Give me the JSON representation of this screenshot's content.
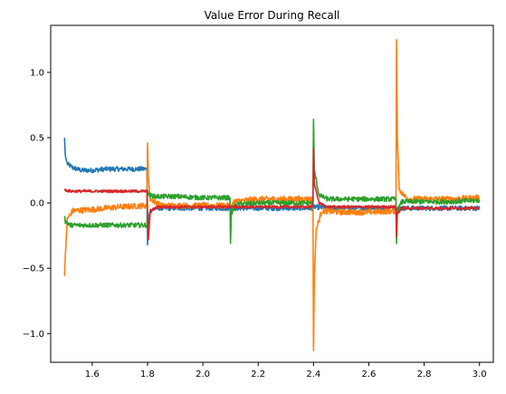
{
  "chart_data": {
    "type": "line",
    "title": "Value Error During Recall",
    "xlabel": "",
    "ylabel": "",
    "xlim": [
      1.45,
      3.05
    ],
    "ylim": [
      -1.22,
      1.36
    ],
    "xticks": [
      1.6,
      1.8,
      2.0,
      2.2,
      2.4,
      2.6,
      2.8,
      3.0
    ],
    "xtick_labels": [
      "1.6",
      "1.8",
      "2.0",
      "2.2",
      "2.4",
      "2.6",
      "2.8",
      "3.0"
    ],
    "yticks": [
      1.0,
      0.5,
      0.0,
      -0.5,
      -1.0
    ],
    "ytick_labels": [
      "1.0",
      "0.5",
      "0.0",
      "−0.5",
      "−1.0"
    ],
    "grid": false,
    "legend": "none",
    "series": [
      {
        "color": "#1f77b4",
        "noise": 0.018,
        "points": [
          [
            1.5,
            0.5
          ],
          [
            1.503,
            0.36
          ],
          [
            1.51,
            0.3
          ],
          [
            1.53,
            0.27
          ],
          [
            1.56,
            0.25
          ],
          [
            1.6,
            0.25
          ],
          [
            1.65,
            0.26
          ],
          [
            1.7,
            0.26
          ],
          [
            1.75,
            0.26
          ],
          [
            1.798,
            0.26
          ],
          [
            1.8,
            -0.32
          ],
          [
            1.803,
            -0.12
          ],
          [
            1.81,
            -0.06
          ],
          [
            1.83,
            -0.04
          ],
          [
            1.9,
            -0.04
          ],
          [
            2.0,
            -0.04
          ],
          [
            2.1,
            -0.04
          ],
          [
            2.2,
            -0.04
          ],
          [
            2.3,
            -0.04
          ],
          [
            2.4,
            -0.04
          ],
          [
            2.403,
            -0.03
          ],
          [
            2.45,
            -0.04
          ],
          [
            2.6,
            -0.04
          ],
          [
            2.7,
            -0.04
          ],
          [
            2.75,
            -0.04
          ],
          [
            2.9,
            -0.04
          ],
          [
            3.0,
            -0.04
          ]
        ]
      },
      {
        "color": "#ff7f0e",
        "noise": 0.022,
        "points": [
          [
            1.5,
            -0.56
          ],
          [
            1.503,
            -0.4
          ],
          [
            1.51,
            -0.12
          ],
          [
            1.53,
            -0.06
          ],
          [
            1.6,
            -0.05
          ],
          [
            1.7,
            -0.03
          ],
          [
            1.798,
            -0.02
          ],
          [
            1.8,
            0.46
          ],
          [
            1.803,
            0.2
          ],
          [
            1.81,
            0.03
          ],
          [
            1.85,
            -0.02
          ],
          [
            1.9,
            -0.02
          ],
          [
            2.0,
            -0.02
          ],
          [
            2.098,
            -0.02
          ],
          [
            2.1,
            -0.04
          ],
          [
            2.11,
            0.01
          ],
          [
            2.2,
            0.03
          ],
          [
            2.3,
            0.03
          ],
          [
            2.398,
            0.03
          ],
          [
            2.4,
            -1.13
          ],
          [
            2.403,
            -0.55
          ],
          [
            2.41,
            -0.2
          ],
          [
            2.43,
            -0.06
          ],
          [
            2.5,
            -0.07
          ],
          [
            2.6,
            -0.07
          ],
          [
            2.698,
            -0.06
          ],
          [
            2.7,
            1.25
          ],
          [
            2.703,
            0.5
          ],
          [
            2.71,
            0.1
          ],
          [
            2.74,
            0.03
          ],
          [
            2.8,
            0.03
          ],
          [
            2.9,
            0.03
          ],
          [
            3.0,
            0.04
          ]
        ]
      },
      {
        "color": "#2ca02c",
        "noise": 0.018,
        "points": [
          [
            1.5,
            -0.1
          ],
          [
            1.503,
            -0.14
          ],
          [
            1.52,
            -0.17
          ],
          [
            1.6,
            -0.17
          ],
          [
            1.7,
            -0.17
          ],
          [
            1.798,
            -0.17
          ],
          [
            1.8,
            0.1
          ],
          [
            1.805,
            0.06
          ],
          [
            1.83,
            0.05
          ],
          [
            1.9,
            0.05
          ],
          [
            2.0,
            0.04
          ],
          [
            2.098,
            0.04
          ],
          [
            2.1,
            -0.31
          ],
          [
            2.103,
            -0.08
          ],
          [
            2.12,
            -0.01
          ],
          [
            2.2,
            0.0
          ],
          [
            2.3,
            0.0
          ],
          [
            2.398,
            0.0
          ],
          [
            2.4,
            0.64
          ],
          [
            2.403,
            0.25
          ],
          [
            2.42,
            0.06
          ],
          [
            2.45,
            0.03
          ],
          [
            2.55,
            0.03
          ],
          [
            2.698,
            0.03
          ],
          [
            2.7,
            -0.31
          ],
          [
            2.703,
            -0.06
          ],
          [
            2.72,
            0.01
          ],
          [
            2.8,
            0.01
          ],
          [
            2.9,
            0.01
          ],
          [
            3.0,
            0.02
          ]
        ]
      },
      {
        "color": "#d62728",
        "noise": 0.01,
        "points": [
          [
            1.5,
            0.1
          ],
          [
            1.52,
            0.09
          ],
          [
            1.6,
            0.09
          ],
          [
            1.7,
            0.09
          ],
          [
            1.798,
            0.09
          ],
          [
            1.8,
            -0.05
          ],
          [
            1.803,
            -0.28
          ],
          [
            1.81,
            -0.06
          ],
          [
            1.84,
            -0.03
          ],
          [
            1.9,
            -0.03
          ],
          [
            2.0,
            -0.03
          ],
          [
            2.1,
            -0.03
          ],
          [
            2.2,
            -0.03
          ],
          [
            2.3,
            -0.03
          ],
          [
            2.398,
            -0.03
          ],
          [
            2.4,
            0.42
          ],
          [
            2.403,
            0.15
          ],
          [
            2.42,
            0.0
          ],
          [
            2.45,
            -0.03
          ],
          [
            2.55,
            -0.03
          ],
          [
            2.698,
            -0.03
          ],
          [
            2.7,
            -0.26
          ],
          [
            2.703,
            -0.08
          ],
          [
            2.72,
            -0.04
          ],
          [
            2.8,
            -0.04
          ],
          [
            2.9,
            -0.04
          ],
          [
            3.0,
            -0.04
          ]
        ]
      }
    ]
  }
}
